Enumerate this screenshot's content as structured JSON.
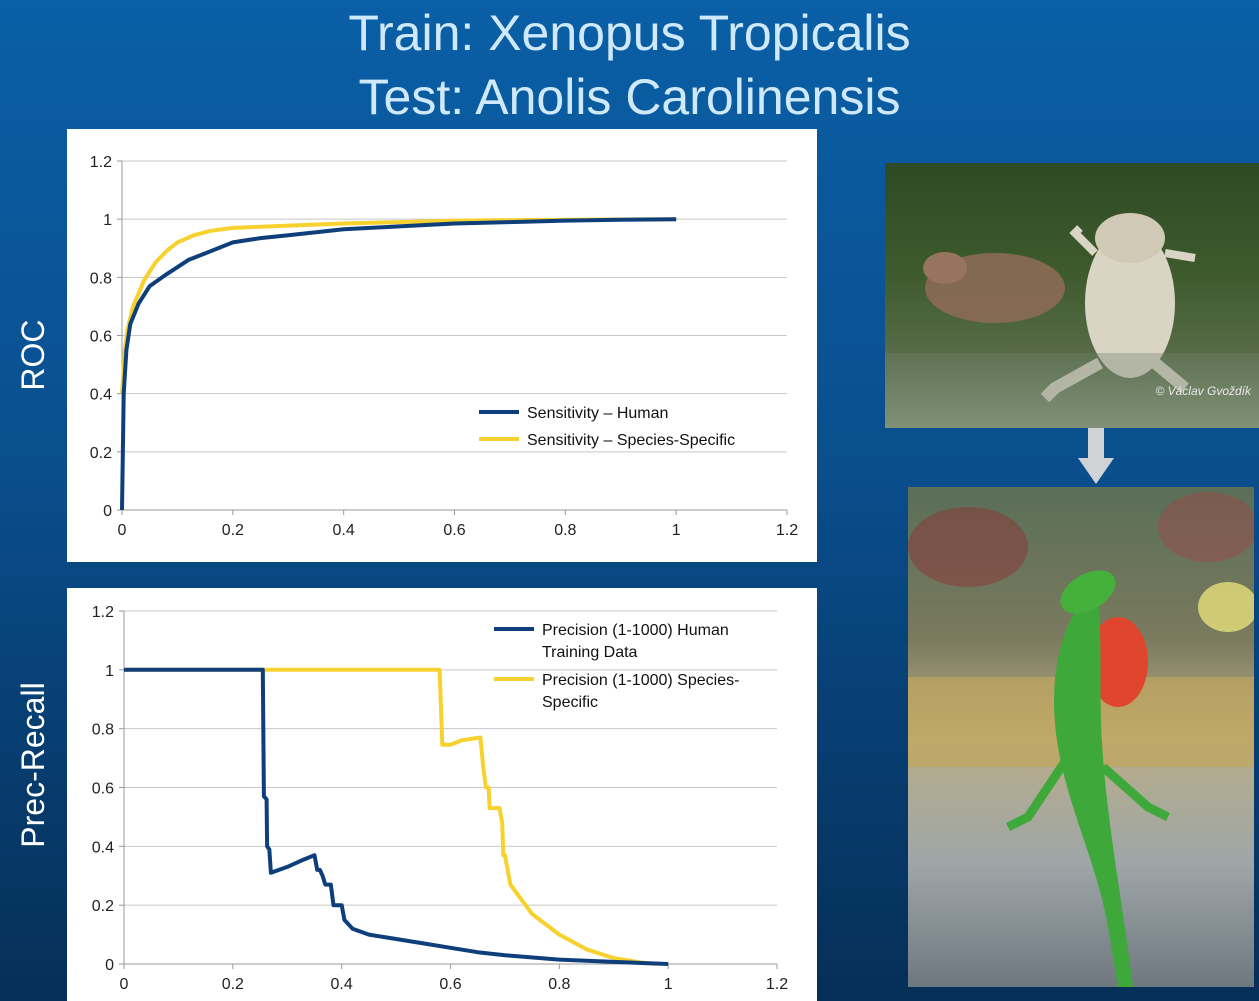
{
  "title": {
    "line1": "Train: Xenopus Tropicalis",
    "line2": "Test: Anolis Carolinensis"
  },
  "labels": {
    "roc": "ROC",
    "prec_recall": "Prec-Recall"
  },
  "photo_credit": "© Václav Gvoždík",
  "colors": {
    "human": "#0e3f7a",
    "species": "#f7d22e",
    "grid": "#c8c8c8",
    "axis": "#999999"
  },
  "chart_data": [
    {
      "type": "line",
      "name": "roc",
      "xlim": [
        0,
        1.2
      ],
      "ylim": [
        0,
        1.2
      ],
      "x_ticks": [
        "0",
        "0.2",
        "0.4",
        "0.6",
        "0.8",
        "1",
        "1.2"
      ],
      "y_ticks": [
        "0",
        "0.2",
        "0.4",
        "0.6",
        "0.8",
        "1",
        "1.2"
      ],
      "legend_position": "bottom-right",
      "series": [
        {
          "name": "Sensitivity – Human",
          "points": [
            [
              0,
              0
            ],
            [
              0.003,
              0.4
            ],
            [
              0.008,
              0.55
            ],
            [
              0.015,
              0.64
            ],
            [
              0.03,
              0.71
            ],
            [
              0.05,
              0.77
            ],
            [
              0.08,
              0.81
            ],
            [
              0.12,
              0.86
            ],
            [
              0.16,
              0.89
            ],
            [
              0.2,
              0.92
            ],
            [
              0.25,
              0.935
            ],
            [
              0.3,
              0.945
            ],
            [
              0.4,
              0.965
            ],
            [
              0.5,
              0.975
            ],
            [
              0.6,
              0.985
            ],
            [
              0.7,
              0.99
            ],
            [
              0.8,
              0.995
            ],
            [
              0.9,
              0.998
            ],
            [
              1.0,
              1.0
            ]
          ]
        },
        {
          "name": "Sensitivity – Species-Specific",
          "points": [
            [
              0,
              0.4
            ],
            [
              0.005,
              0.55
            ],
            [
              0.01,
              0.62
            ],
            [
              0.02,
              0.7
            ],
            [
              0.04,
              0.79
            ],
            [
              0.06,
              0.85
            ],
            [
              0.08,
              0.89
            ],
            [
              0.1,
              0.92
            ],
            [
              0.13,
              0.945
            ],
            [
              0.16,
              0.96
            ],
            [
              0.2,
              0.97
            ],
            [
              0.3,
              0.978
            ],
            [
              0.4,
              0.985
            ],
            [
              0.5,
              0.99
            ],
            [
              0.6,
              0.995
            ],
            [
              0.8,
              0.998
            ],
            [
              1.0,
              1.0
            ]
          ]
        }
      ]
    },
    {
      "type": "line",
      "name": "precision-recall",
      "xlim": [
        0,
        1.2
      ],
      "ylim": [
        0,
        1.2
      ],
      "x_ticks": [
        "0",
        "0.2",
        "0.4",
        "0.6",
        "0.8",
        "1",
        "1.2"
      ],
      "y_ticks": [
        "0",
        "0.2",
        "0.4",
        "0.6",
        "0.8",
        "1",
        "1.2"
      ],
      "legend_position": "top-right",
      "series": [
        {
          "name": "Precision (1-1000) Human Training Data",
          "legend_lines": [
            "Precision (1-1000) Human",
            "Training Data"
          ],
          "points": [
            [
              0,
              1
            ],
            [
              0.255,
              1
            ],
            [
              0.257,
              0.57
            ],
            [
              0.262,
              0.56
            ],
            [
              0.263,
              0.4
            ],
            [
              0.267,
              0.39
            ],
            [
              0.27,
              0.31
            ],
            [
              0.3,
              0.33
            ],
            [
              0.33,
              0.355
            ],
            [
              0.35,
              0.37
            ],
            [
              0.355,
              0.32
            ],
            [
              0.36,
              0.32
            ],
            [
              0.365,
              0.3
            ],
            [
              0.37,
              0.27
            ],
            [
              0.38,
              0.27
            ],
            [
              0.385,
              0.2
            ],
            [
              0.39,
              0.2
            ],
            [
              0.4,
              0.2
            ],
            [
              0.405,
              0.15
            ],
            [
              0.42,
              0.12
            ],
            [
              0.45,
              0.1
            ],
            [
              0.5,
              0.085
            ],
            [
              0.55,
              0.07
            ],
            [
              0.6,
              0.055
            ],
            [
              0.65,
              0.04
            ],
            [
              0.7,
              0.03
            ],
            [
              0.8,
              0.015
            ],
            [
              0.9,
              0.007
            ],
            [
              1.0,
              0.0
            ]
          ]
        },
        {
          "name": "Precision (1-1000) Species-Specific",
          "legend_lines": [
            "Precision (1-1000) Species-",
            "Specific"
          ],
          "points": [
            [
              0,
              1
            ],
            [
              0.58,
              1
            ],
            [
              0.585,
              0.745
            ],
            [
              0.6,
              0.745
            ],
            [
              0.62,
              0.76
            ],
            [
              0.655,
              0.77
            ],
            [
              0.66,
              0.67
            ],
            [
              0.665,
              0.6
            ],
            [
              0.67,
              0.6
            ],
            [
              0.672,
              0.53
            ],
            [
              0.69,
              0.53
            ],
            [
              0.695,
              0.48
            ],
            [
              0.697,
              0.37
            ],
            [
              0.7,
              0.37
            ],
            [
              0.71,
              0.27
            ],
            [
              0.73,
              0.22
            ],
            [
              0.75,
              0.17
            ],
            [
              0.8,
              0.1
            ],
            [
              0.85,
              0.05
            ],
            [
              0.9,
              0.02
            ],
            [
              0.95,
              0.005
            ],
            [
              0.98,
              0.0
            ]
          ]
        }
      ]
    }
  ]
}
